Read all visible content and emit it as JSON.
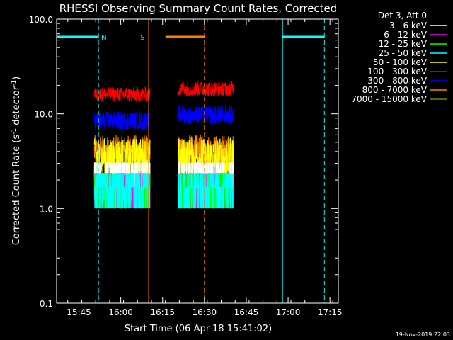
{
  "chart_data": {
    "type": "line",
    "title": "RHESSI Observing Summary Count Rates, Corrected",
    "xlabel": "Start Time (06-Apr-18 15:41:02)",
    "ylabel_main": "Corrected Count Rate (s",
    "ylabel_sup1": "-1",
    "ylabel_mid": " detector",
    "ylabel_sup2": "-1",
    "ylabel_end": ")",
    "yscale": "log",
    "ylim": [
      0.1,
      100.0
    ],
    "xlim_min": [
      -4,
      97
    ],
    "x_ticks": [
      {
        "min": 4,
        "label": "15:45"
      },
      {
        "min": 19,
        "label": "16:00"
      },
      {
        "min": 34,
        "label": "16:15"
      },
      {
        "min": 49,
        "label": "16:30"
      },
      {
        "min": 64,
        "label": "16:45"
      },
      {
        "min": 79,
        "label": "17:00"
      },
      {
        "min": 94,
        "label": "17:15"
      }
    ],
    "y_ticks": [
      {
        "value": 100.0,
        "label": "100.0"
      },
      {
        "value": 10.0,
        "label": "10.0"
      },
      {
        "value": 1.0,
        "label": "1.0"
      },
      {
        "value": 0.1,
        "label": "0.1"
      }
    ],
    "legend_title": "Det 3, Att 0",
    "legend_position": "right",
    "series": [
      {
        "name": "3 - 6 keV",
        "color": "#ffffff",
        "level": 2.3,
        "spread": 1.6
      },
      {
        "name": "6 - 12 keV",
        "color": "#ff00ff",
        "level": 1.5,
        "spread": 1.5
      },
      {
        "name": "12 - 25 keV",
        "color": "#00ff00",
        "level": 1.4,
        "spread": 1.4
      },
      {
        "name": "25 - 50 keV",
        "color": "#00ffff",
        "level": 1.4,
        "spread": 1.4
      },
      {
        "name": "50 - 100 keV",
        "color": "#ffff00",
        "level": 3.5,
        "spread": 1.6
      },
      {
        "name": "100 - 300 keV",
        "color": "#ff0000",
        "level": 16.0,
        "spread": 1.2
      },
      {
        "name": "300 - 800 keV",
        "color": "#0000ff",
        "level": 8.5,
        "spread": 1.25
      },
      {
        "name": "800 - 7000 keV",
        "color": "#ff8000",
        "level": 4.0,
        "spread": 1.5
      },
      {
        "name": "7000 - 15000 keV",
        "color": "#808000",
        "level": 2.0,
        "spread": 1.3
      }
    ],
    "data_intervals_min": [
      [
        9.5,
        29.5
      ],
      [
        39.5,
        59.5
      ]
    ],
    "flags": [
      {
        "label": "N",
        "color": "#00ffff",
        "y": 65.0,
        "bars": [
          [
            -4,
            11
          ],
          [
            77,
            92
          ]
        ],
        "solid_lines": [
          -4,
          77
        ],
        "dashed_lines": [
          11,
          92
        ]
      },
      {
        "label": "S",
        "color": "#ff8000",
        "y": 65.0,
        "bars": [
          [
            35,
            49
          ]
        ],
        "solid_lines": [
          29
        ],
        "dashed_lines": [
          49
        ]
      }
    ]
  },
  "footer": {
    "date_stamp": "19-Nov-2019 22:03"
  }
}
